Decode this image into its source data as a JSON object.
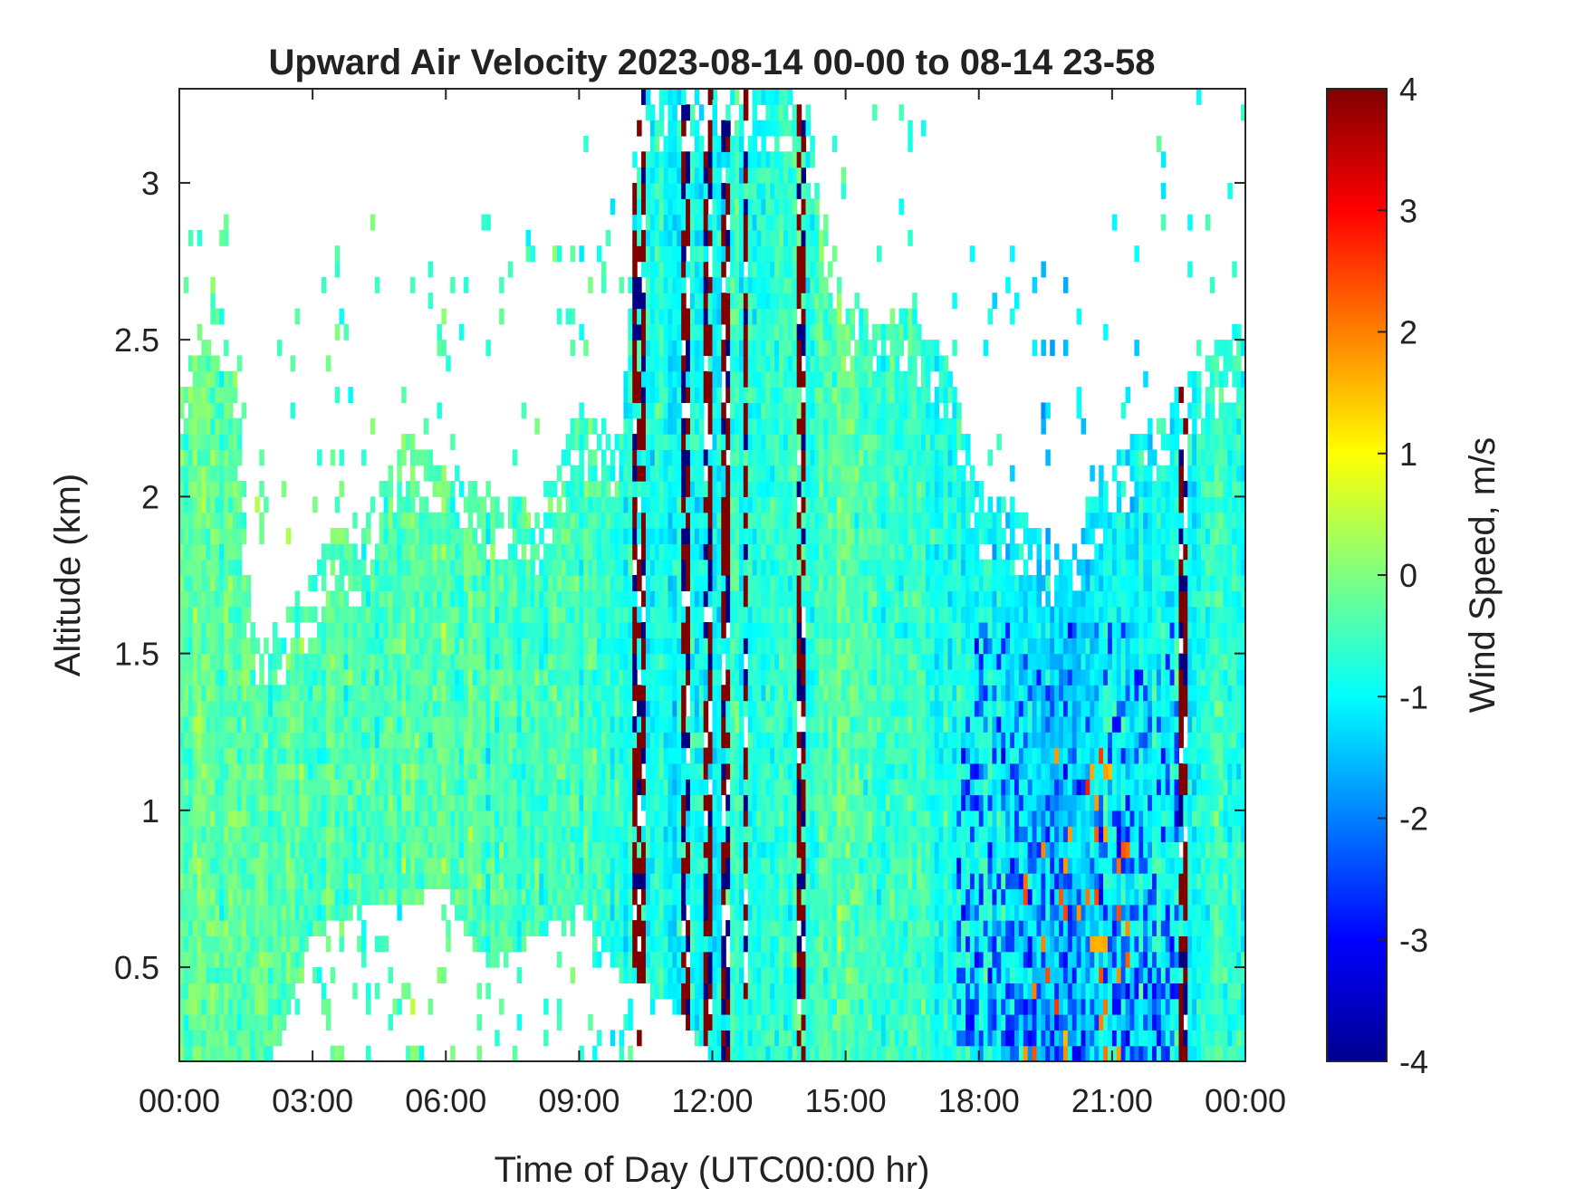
{
  "chart_data": {
    "type": "heatmap",
    "title": "Upward Air Velocity 2023-08-14 00-00 to 08-14 23-58",
    "xlabel": "Time of Day (UTC00:00 hr)",
    "ylabel": "Altitude (km)",
    "colorbar_label": "Wind Speed, m/s",
    "colormap": "jet",
    "x_unit": "hours since 2023-08-14 00:00 UTC",
    "xlim": [
      0,
      24
    ],
    "ylim": [
      0.2,
      3.3
    ],
    "clim": [
      -4,
      4
    ],
    "x_ticks": [
      0,
      3,
      6,
      9,
      12,
      15,
      18,
      21,
      24
    ],
    "x_tick_labels": [
      "00:00",
      "03:00",
      "06:00",
      "09:00",
      "12:00",
      "15:00",
      "18:00",
      "21:00",
      "00:00"
    ],
    "y_ticks": [
      0.5,
      1,
      1.5,
      2,
      2.5,
      3
    ],
    "y_tick_labels": [
      "0.5",
      "1",
      "1.5",
      "2",
      "2.5",
      "3"
    ],
    "colorbar_ticks": [
      -4,
      -3,
      -2,
      -1,
      0,
      1,
      2,
      3,
      4
    ],
    "colorbar_tick_labels": [
      "-4",
      "-3",
      "-2",
      "-1",
      "0",
      "1",
      "2",
      "3",
      "4"
    ],
    "grid": false,
    "data_top_km": [
      [
        0.0,
        2.35
      ],
      [
        0.5,
        2.55
      ],
      [
        1.0,
        2.6
      ],
      [
        1.3,
        2.4
      ],
      [
        1.5,
        1.8
      ],
      [
        1.8,
        1.5
      ],
      [
        2.0,
        1.55
      ],
      [
        2.5,
        1.65
      ],
      [
        3.0,
        1.75
      ],
      [
        3.5,
        1.9
      ],
      [
        4.0,
        1.85
      ],
      [
        4.5,
        2.05
      ],
      [
        5.0,
        2.2
      ],
      [
        5.5,
        2.15
      ],
      [
        6.0,
        2.1
      ],
      [
        6.5,
        2.05
      ],
      [
        7.0,
        2.0
      ],
      [
        7.5,
        2.0
      ],
      [
        8.0,
        1.95
      ],
      [
        8.5,
        2.1
      ],
      [
        9.0,
        2.3
      ],
      [
        9.5,
        2.2
      ],
      [
        10.0,
        2.2
      ],
      [
        10.3,
        3.3
      ],
      [
        11.0,
        3.3
      ],
      [
        12.0,
        3.3
      ],
      [
        13.0,
        3.3
      ],
      [
        14.0,
        3.3
      ],
      [
        15.0,
        2.6
      ],
      [
        16.0,
        2.55
      ],
      [
        16.5,
        2.6
      ],
      [
        17.0,
        2.5
      ],
      [
        17.5,
        2.35
      ],
      [
        18.0,
        2.0
      ],
      [
        18.5,
        2.0
      ],
      [
        19.0,
        1.95
      ],
      [
        19.5,
        1.85
      ],
      [
        20.0,
        1.8
      ],
      [
        20.5,
        2.0
      ],
      [
        21.0,
        2.1
      ],
      [
        21.5,
        2.2
      ],
      [
        22.0,
        2.25
      ],
      [
        22.5,
        2.35
      ],
      [
        23.0,
        2.4
      ],
      [
        23.5,
        2.5
      ],
      [
        24.0,
        2.55
      ]
    ],
    "data_bottom_km": [
      [
        0.0,
        0.2
      ],
      [
        1.0,
        0.2
      ],
      [
        2.0,
        0.2
      ],
      [
        2.5,
        0.35
      ],
      [
        3.0,
        0.6
      ],
      [
        4.0,
        0.7
      ],
      [
        5.0,
        0.7
      ],
      [
        6.0,
        0.75
      ],
      [
        6.5,
        0.6
      ],
      [
        7.0,
        0.5
      ],
      [
        8.0,
        0.6
      ],
      [
        9.0,
        0.7
      ],
      [
        10.0,
        0.45
      ],
      [
        10.3,
        0.45
      ],
      [
        11.0,
        0.4
      ],
      [
        12.0,
        0.2
      ],
      [
        24.0,
        0.2
      ]
    ],
    "mean_velocity_by_hour": [
      [
        0,
        -0.3
      ],
      [
        3,
        -0.4
      ],
      [
        6,
        -0.3
      ],
      [
        9,
        -0.5
      ],
      [
        10.5,
        -0.9
      ],
      [
        12,
        -0.8
      ],
      [
        15,
        -0.4
      ],
      [
        18,
        -0.9
      ],
      [
        20,
        -1.3
      ],
      [
        22,
        -0.9
      ],
      [
        24,
        -0.6
      ]
    ],
    "extreme_columns_hour": [
      10.25,
      10.4,
      11.4,
      11.9,
      12.3,
      12.75,
      14.0,
      22.6
    ],
    "downdraft_region": {
      "hours": [
        17.5,
        22.5
      ],
      "km": [
        0.2,
        1.6
      ],
      "velocity": -2.5
    },
    "updraft_streaks": {
      "hours": [
        19.0,
        21.5
      ],
      "km": [
        0.2,
        1.2
      ],
      "velocity": 2.0
    }
  }
}
